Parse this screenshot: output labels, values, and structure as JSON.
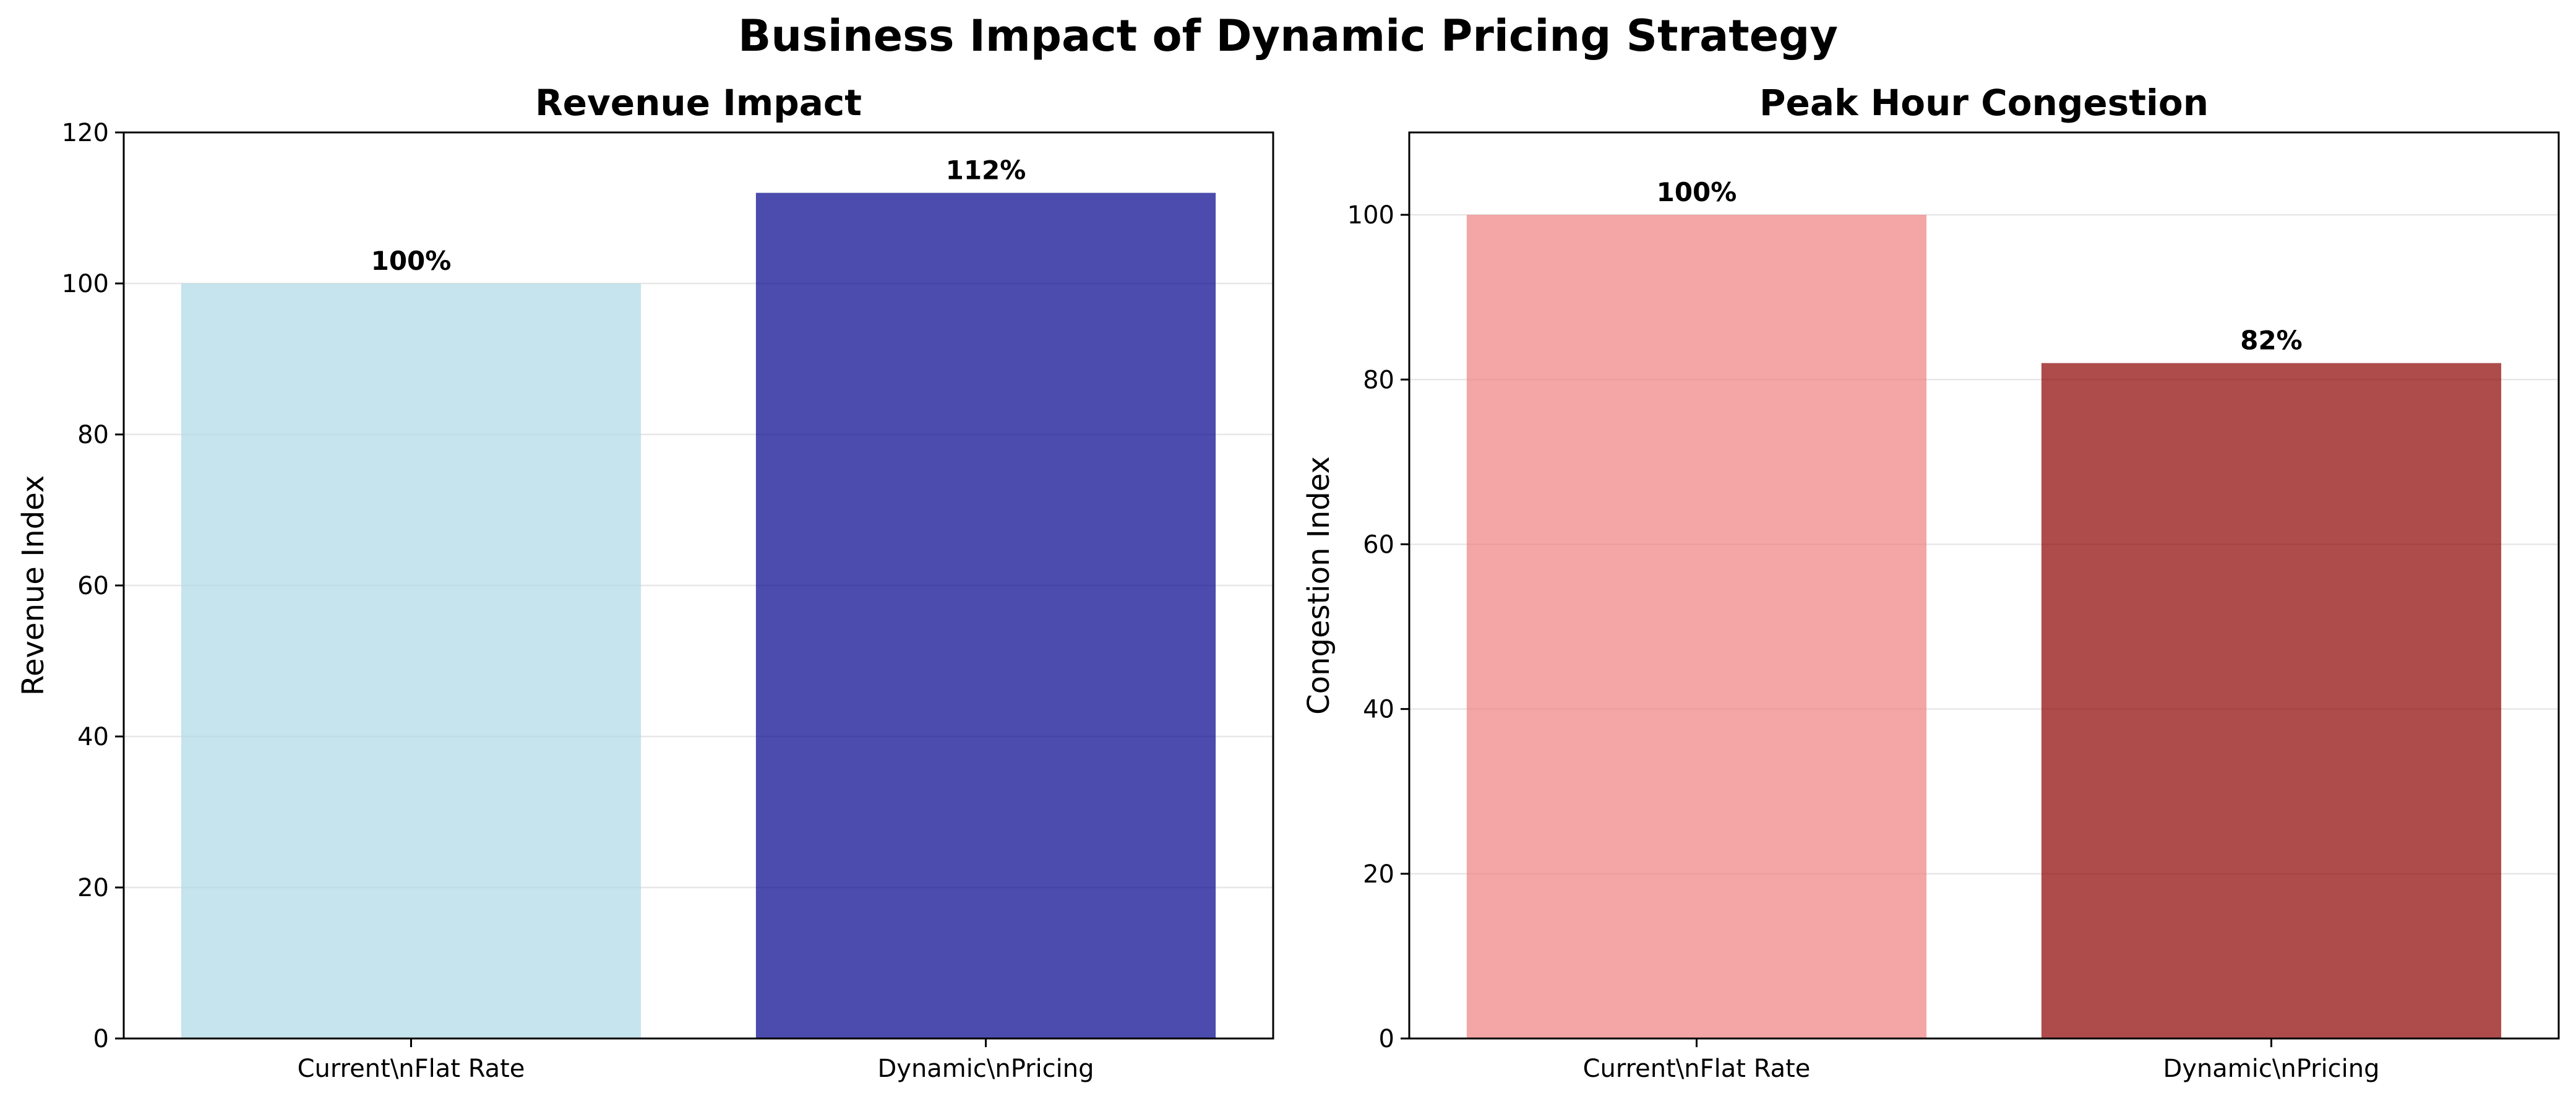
{
  "figure": {
    "title": "Business Impact of Dynamic Pricing Strategy"
  },
  "chart_data": [
    {
      "type": "bar",
      "title": "Revenue Impact",
      "xlabel": "",
      "ylabel": "Revenue Index",
      "categories": [
        "Current\\nFlat Rate",
        "Dynamic\\nPricing"
      ],
      "values": [
        100,
        112
      ],
      "data_labels": [
        "100%",
        "112%"
      ],
      "colors": [
        "#add8e6",
        "#00008b"
      ],
      "bar_opacity": 0.7,
      "ylim": [
        0,
        120
      ],
      "yticks": [
        0,
        20,
        40,
        60,
        80,
        100,
        120
      ],
      "grid": true,
      "grid_axis": "y",
      "legend": "none"
    },
    {
      "type": "bar",
      "title": "Peak Hour Congestion",
      "xlabel": "",
      "ylabel": "Congestion Index",
      "categories": [
        "Current\\nFlat Rate",
        "Dynamic\\nPricing"
      ],
      "values": [
        100,
        82
      ],
      "data_labels": [
        "100%",
        "82%"
      ],
      "colors": [
        "#f08080",
        "#8b0000"
      ],
      "bar_opacity": 0.7,
      "ylim": [
        0,
        110
      ],
      "yticks": [
        0,
        20,
        40,
        60,
        80,
        100
      ],
      "grid": true,
      "grid_axis": "y",
      "legend": "none"
    }
  ]
}
